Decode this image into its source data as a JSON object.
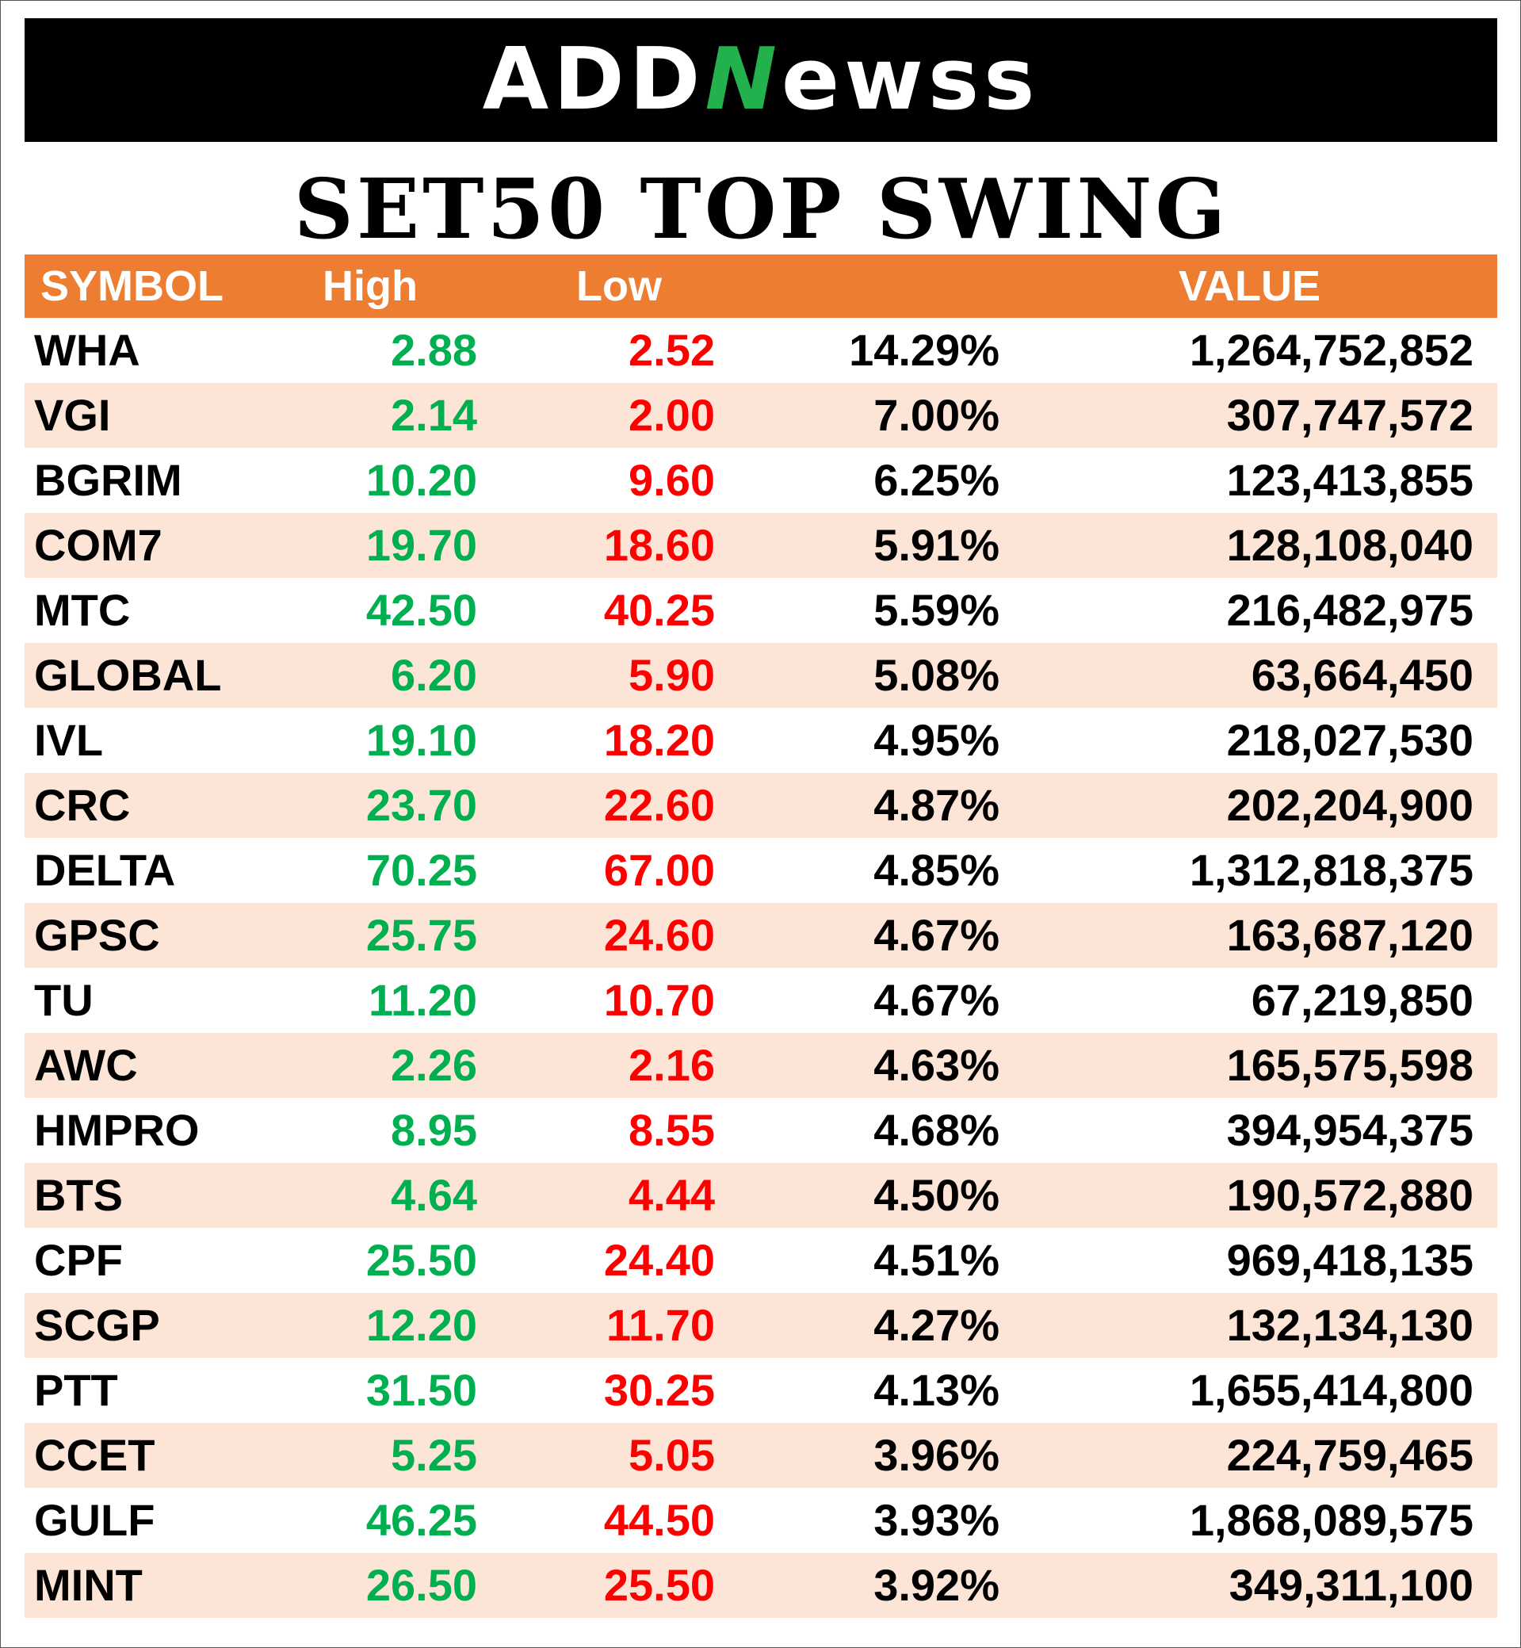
{
  "logo": {
    "text_part1": "ADD",
    "text_n": "N",
    "text_part2": "ewss",
    "accent_color": "#22b14c"
  },
  "title": "SET50 TOP SWING",
  "table": {
    "header_color": "#ed7d31",
    "stripe_color": "#fce4d6",
    "high_color": "#00b050",
    "low_color": "#ff0000",
    "columns": {
      "symbol": "SYMBOL",
      "high": "High",
      "low": "Low",
      "change": "",
      "value": "VALUE"
    },
    "rows": [
      {
        "symbol": "WHA",
        "high": "2.88",
        "low": "2.52",
        "change": "14.29%",
        "value": "1,264,752,852"
      },
      {
        "symbol": "VGI",
        "high": "2.14",
        "low": "2.00",
        "change": "7.00%",
        "value": "307,747,572"
      },
      {
        "symbol": "BGRIM",
        "high": "10.20",
        "low": "9.60",
        "change": "6.25%",
        "value": "123,413,855"
      },
      {
        "symbol": "COM7",
        "high": "19.70",
        "low": "18.60",
        "change": "5.91%",
        "value": "128,108,040"
      },
      {
        "symbol": "MTC",
        "high": "42.50",
        "low": "40.25",
        "change": "5.59%",
        "value": "216,482,975"
      },
      {
        "symbol": "GLOBAL",
        "high": "6.20",
        "low": "5.90",
        "change": "5.08%",
        "value": "63,664,450"
      },
      {
        "symbol": "IVL",
        "high": "19.10",
        "low": "18.20",
        "change": "4.95%",
        "value": "218,027,530"
      },
      {
        "symbol": "CRC",
        "high": "23.70",
        "low": "22.60",
        "change": "4.87%",
        "value": "202,204,900"
      },
      {
        "symbol": "DELTA",
        "high": "70.25",
        "low": "67.00",
        "change": "4.85%",
        "value": "1,312,818,375"
      },
      {
        "symbol": "GPSC",
        "high": "25.75",
        "low": "24.60",
        "change": "4.67%",
        "value": "163,687,120"
      },
      {
        "symbol": "TU",
        "high": "11.20",
        "low": "10.70",
        "change": "4.67%",
        "value": "67,219,850"
      },
      {
        "symbol": "AWC",
        "high": "2.26",
        "low": "2.16",
        "change": "4.63%",
        "value": "165,575,598"
      },
      {
        "symbol": "HMPRO",
        "high": "8.95",
        "low": "8.55",
        "change": "4.68%",
        "value": "394,954,375"
      },
      {
        "symbol": "BTS",
        "high": "4.64",
        "low": "4.44",
        "change": "4.50%",
        "value": "190,572,880"
      },
      {
        "symbol": "CPF",
        "high": "25.50",
        "low": "24.40",
        "change": "4.51%",
        "value": "969,418,135"
      },
      {
        "symbol": "SCGP",
        "high": "12.20",
        "low": "11.70",
        "change": "4.27%",
        "value": "132,134,130"
      },
      {
        "symbol": "PTT",
        "high": "31.50",
        "low": "30.25",
        "change": "4.13%",
        "value": "1,655,414,800"
      },
      {
        "symbol": "CCET",
        "high": "5.25",
        "low": "5.05",
        "change": "3.96%",
        "value": "224,759,465"
      },
      {
        "symbol": "GULF",
        "high": "46.25",
        "low": "44.50",
        "change": "3.93%",
        "value": "1,868,089,575"
      },
      {
        "symbol": "MINT",
        "high": "26.50",
        "low": "25.50",
        "change": "3.92%",
        "value": "349,311,100"
      }
    ]
  }
}
